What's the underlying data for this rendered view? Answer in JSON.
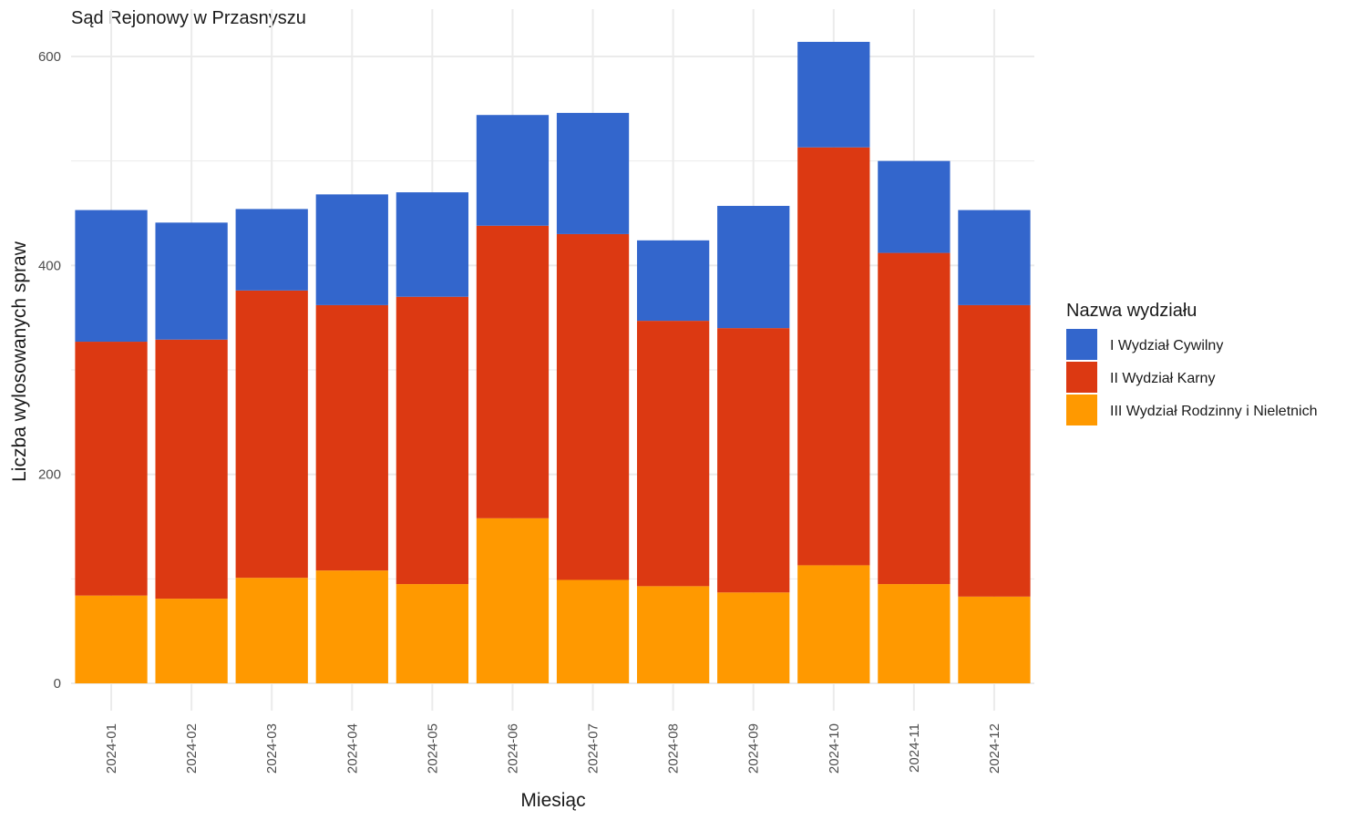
{
  "chart_data": {
    "type": "bar",
    "stacked": true,
    "title": "Sąd Rejonowy w Przasnyszu",
    "xlabel": "Miesiąc",
    "ylabel": "Liczba wylosowanych spraw",
    "ylim": [
      0,
      640
    ],
    "yticks": [
      0,
      200,
      400,
      600
    ],
    "grid": true,
    "legend_title": "Nazwa wydziału",
    "legend_position": "right",
    "categories": [
      "2024-01",
      "2024-02",
      "2024-03",
      "2024-04",
      "2024-05",
      "2024-06",
      "2024-07",
      "2024-08",
      "2024-09",
      "2024-10",
      "2024-11",
      "2024-12"
    ],
    "series": [
      {
        "name": "III Wydział Rodzinny i Nieletnich",
        "color": "#FF9900",
        "values": [
          84,
          81,
          101,
          108,
          95,
          158,
          99,
          93,
          87,
          113,
          95,
          83
        ]
      },
      {
        "name": "II Wydział Karny",
        "color": "#DC3912",
        "values": [
          243,
          248,
          275,
          254,
          275,
          280,
          331,
          254,
          253,
          400,
          317,
          279
        ]
      },
      {
        "name": "I Wydział Cywilny",
        "color": "#3366CC",
        "values": [
          126,
          112,
          78,
          106,
          100,
          106,
          116,
          77,
          117,
          101,
          88,
          91
        ]
      }
    ],
    "legend_order": [
      "I Wydział Cywilny",
      "II Wydział Karny",
      "III Wydział Rodzinny i Nieletnich"
    ]
  }
}
